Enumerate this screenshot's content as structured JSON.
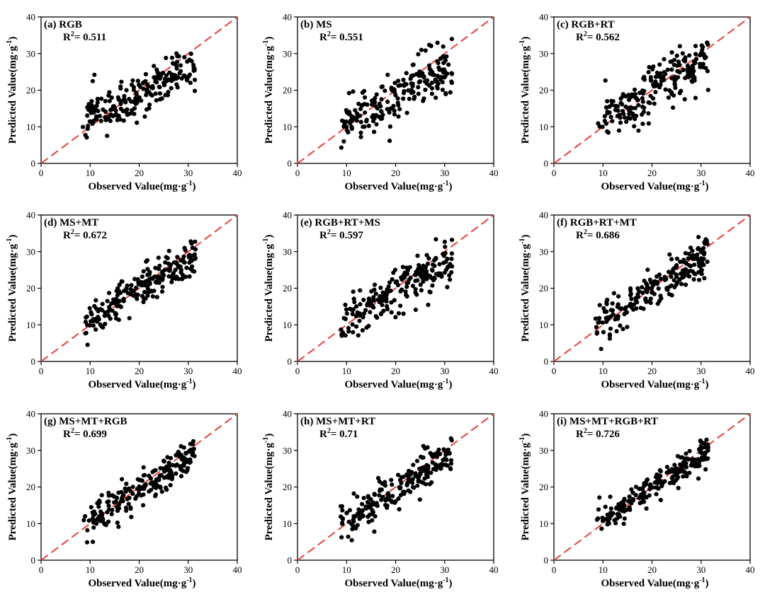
{
  "chart_data": [
    {
      "type": "scatter",
      "panel": "(a)",
      "title": "RGB",
      "r2_text": "= 0.511",
      "xlabel": "Observed Value(mg·g",
      "ylabel": "Predicted Value(mg·g",
      "unit_exponent": "-1",
      "xlim": [
        0,
        40
      ],
      "ylim": [
        0,
        40
      ],
      "xticks": [
        0,
        10,
        20,
        30,
        40
      ],
      "yticks": [
        0,
        10,
        20,
        30,
        40
      ],
      "reference_line": "1:1",
      "reference_line_color": "#e8413c",
      "point_color": "#000000",
      "seed": 11,
      "noise": 3.0,
      "slope": 0.6,
      "intercept": 7
    },
    {
      "type": "scatter",
      "panel": "(b)",
      "title": "MS",
      "r2_text": "= 0.551",
      "xlabel": "Observed Value(mg·g",
      "ylabel": "Predicted Value(mg·g",
      "unit_exponent": "-1",
      "xlim": [
        0,
        40
      ],
      "ylim": [
        0,
        40
      ],
      "xticks": [
        0,
        10,
        20,
        30,
        40
      ],
      "yticks": [
        0,
        10,
        20,
        30,
        40
      ],
      "reference_line": "1:1",
      "reference_line_color": "#e8413c",
      "point_color": "#000000",
      "seed": 23,
      "noise": 3.3,
      "slope": 0.7,
      "intercept": 5
    },
    {
      "type": "scatter",
      "panel": "(c)",
      "title": "RGB+RT",
      "r2_text": "= 0.562",
      "xlabel": "Observed Value(mg·g",
      "ylabel": "Predicted Value(mg·g",
      "unit_exponent": "-1",
      "xlim": [
        0,
        40
      ],
      "ylim": [
        0,
        40
      ],
      "xticks": [
        0,
        10,
        20,
        30,
        40
      ],
      "yticks": [
        0,
        10,
        20,
        30,
        40
      ],
      "reference_line": "1:1",
      "reference_line_color": "#e8413c",
      "point_color": "#000000",
      "seed": 37,
      "noise": 3.4,
      "slope": 0.75,
      "intercept": 4.5
    },
    {
      "type": "scatter",
      "panel": "(d)",
      "title": "MS+MT",
      "r2_text": "= 0.672",
      "xlabel": "Observed Value(mg·g",
      "ylabel": "Predicted Value(mg·g",
      "unit_exponent": "-1",
      "xlim": [
        0,
        40
      ],
      "ylim": [
        0,
        40
      ],
      "xticks": [
        0,
        10,
        20,
        30,
        40
      ],
      "yticks": [
        0,
        10,
        20,
        30,
        40
      ],
      "reference_line": "1:1",
      "reference_line_color": "#e8413c",
      "point_color": "#000000",
      "seed": 41,
      "noise": 2.6,
      "slope": 0.8,
      "intercept": 3.5
    },
    {
      "type": "scatter",
      "panel": "(e)",
      "title": "RGB+RT+MS",
      "r2_text": "= 0.597",
      "xlabel": "Observed Value(mg·g",
      "ylabel": "Predicted Value(mg·g",
      "unit_exponent": "-1",
      "xlim": [
        0,
        40
      ],
      "ylim": [
        0,
        40
      ],
      "xticks": [
        0,
        10,
        20,
        30,
        40
      ],
      "yticks": [
        0,
        10,
        20,
        30,
        40
      ],
      "reference_line": "1:1",
      "reference_line_color": "#e8413c",
      "point_color": "#000000",
      "seed": 53,
      "noise": 3.0,
      "slope": 0.75,
      "intercept": 4
    },
    {
      "type": "scatter",
      "panel": "(f)",
      "title": "RGB+RT+MT",
      "r2_text": "= 0.686",
      "xlabel": "Observed Value(mg·g",
      "ylabel": "Predicted Value(mg·g",
      "unit_exponent": "-1",
      "xlim": [
        0,
        40
      ],
      "ylim": [
        0,
        40
      ],
      "xticks": [
        0,
        10,
        20,
        30,
        40
      ],
      "yticks": [
        0,
        10,
        20,
        30,
        40
      ],
      "reference_line": "1:1",
      "reference_line_color": "#e8413c",
      "point_color": "#000000",
      "seed": 67,
      "noise": 2.5,
      "slope": 0.85,
      "intercept": 2.5
    },
    {
      "type": "scatter",
      "panel": "(g)",
      "title": "MS+MT+RGB",
      "r2_text": "= 0.699",
      "xlabel": "Observed Value(mg·g",
      "ylabel": "Predicted Value(mg·g",
      "unit_exponent": "-1",
      "xlim": [
        0,
        40
      ],
      "ylim": [
        0,
        40
      ],
      "xticks": [
        0,
        10,
        20,
        30,
        40
      ],
      "yticks": [
        0,
        10,
        20,
        30,
        40
      ],
      "reference_line": "1:1",
      "reference_line_color": "#e8413c",
      "point_color": "#000000",
      "seed": 71,
      "noise": 2.5,
      "slope": 0.85,
      "intercept": 2.5
    },
    {
      "type": "scatter",
      "panel": "(h)",
      "title": "MS+MT+RT",
      "r2_text": "= 0.71",
      "xlabel": "Observed Value(mg·g",
      "ylabel": "Predicted Value(mg·g",
      "unit_exponent": "-1",
      "xlim": [
        0,
        40
      ],
      "ylim": [
        0,
        40
      ],
      "xticks": [
        0,
        10,
        20,
        30,
        40
      ],
      "yticks": [
        0,
        10,
        20,
        30,
        40
      ],
      "reference_line": "1:1",
      "reference_line_color": "#e8413c",
      "point_color": "#000000",
      "seed": 83,
      "noise": 2.4,
      "slope": 0.85,
      "intercept": 2.5
    },
    {
      "type": "scatter",
      "panel": "(i)",
      "title": "MS+MT+RGB+RT",
      "r2_text": "= 0.726",
      "xlabel": "Observed Value(mg·g",
      "ylabel": "Predicted Value(mg·g",
      "unit_exponent": "-1",
      "xlim": [
        0,
        40
      ],
      "ylim": [
        0,
        40
      ],
      "xticks": [
        0,
        10,
        20,
        30,
        40
      ],
      "yticks": [
        0,
        10,
        20,
        30,
        40
      ],
      "reference_line": "1:1",
      "reference_line_color": "#e8413c",
      "point_color": "#000000",
      "seed": 97,
      "noise": 2.2,
      "slope": 0.85,
      "intercept": 2.5
    }
  ]
}
